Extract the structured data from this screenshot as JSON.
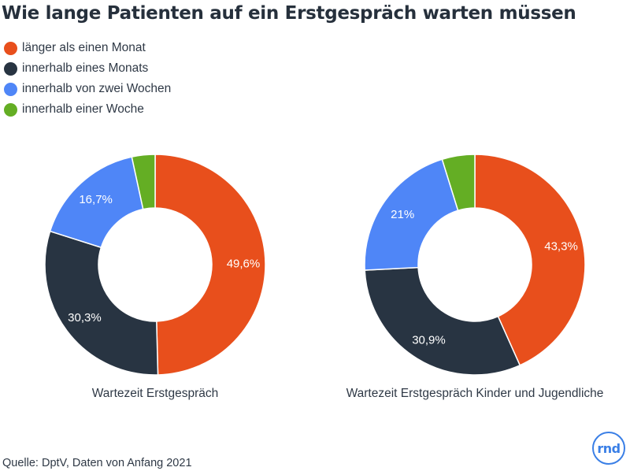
{
  "title": "Wie lange Patienten auf ein Erstgespräch warten müssen",
  "source": "Quelle: DptV, Daten von Anfang 2021",
  "logo_text": "rnd",
  "legend": [
    {
      "label": "länger als einen Monat",
      "color": "#e84f1c"
    },
    {
      "label": "innerhalb eines Monats",
      "color": "#283442"
    },
    {
      "label": "innerhalb von zwei Wochen",
      "color": "#4f86f7"
    },
    {
      "label": "innerhalb einer Woche",
      "color": "#64ae24"
    }
  ],
  "chart_data": [
    {
      "type": "pie",
      "title": "Wartezeit Erstgespräch",
      "slices": [
        {
          "name": "länger als einen Monat",
          "value": 49.6,
          "label": "49,6%"
        },
        {
          "name": "innerhalb eines Monats",
          "value": 30.3,
          "label": "30,3%"
        },
        {
          "name": "innerhalb von zwei Wochen",
          "value": 16.7,
          "label": "16,7%"
        },
        {
          "name": "innerhalb einer Woche",
          "value": 3.4,
          "label": ""
        }
      ]
    },
    {
      "type": "pie",
      "title": "Wartezeit Erstgespräch Kinder und Jugendliche",
      "slices": [
        {
          "name": "länger als einen Monat",
          "value": 43.3,
          "label": "43,3%"
        },
        {
          "name": "innerhalb eines Monats",
          "value": 30.9,
          "label": "30,9%"
        },
        {
          "name": "innerhalb von zwei Wochen",
          "value": 21,
          "label": "21%"
        },
        {
          "name": "innerhalb einer Woche",
          "value": 4.8,
          "label": ""
        }
      ]
    }
  ]
}
